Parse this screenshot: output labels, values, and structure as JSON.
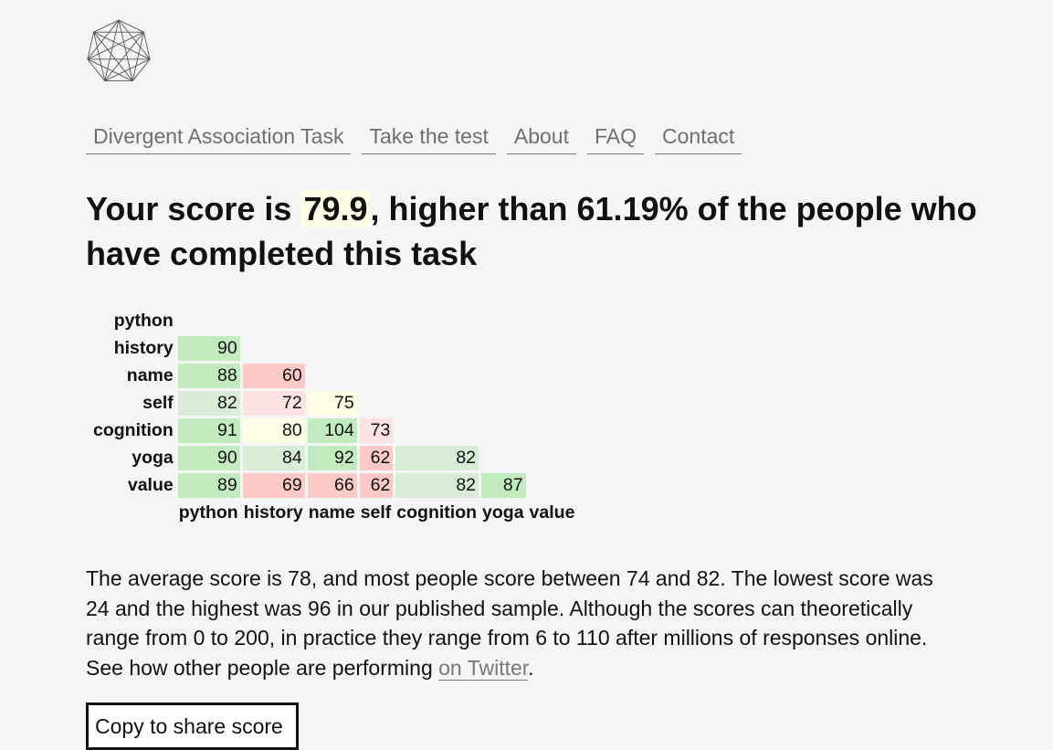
{
  "nav": {
    "home": "Divergent Association Task",
    "take_test": "Take the test",
    "about": "About",
    "faq": "FAQ",
    "contact": "Contact"
  },
  "headline": {
    "prefix": "Your score is ",
    "score": "79.9",
    "suffix": ", higher than 61.19% of the people who have completed this task"
  },
  "matrix": {
    "rows": [
      {
        "word": "python",
        "cells": []
      },
      {
        "word": "history",
        "cells": [
          {
            "v": "90",
            "c": "green"
          }
        ]
      },
      {
        "word": "name",
        "cells": [
          {
            "v": "88",
            "c": "green"
          },
          {
            "v": "60",
            "c": "red"
          }
        ]
      },
      {
        "word": "self",
        "cells": [
          {
            "v": "82",
            "c": "lgreen"
          },
          {
            "v": "72",
            "c": "lred"
          },
          {
            "v": "75",
            "c": "yellow"
          }
        ]
      },
      {
        "word": "cognition",
        "cells": [
          {
            "v": "91",
            "c": "green"
          },
          {
            "v": "80",
            "c": "yellow"
          },
          {
            "v": "104",
            "c": "green"
          },
          {
            "v": "73",
            "c": "lred"
          }
        ]
      },
      {
        "word": "yoga",
        "cells": [
          {
            "v": "90",
            "c": "green"
          },
          {
            "v": "84",
            "c": "lgreen"
          },
          {
            "v": "92",
            "c": "green"
          },
          {
            "v": "62",
            "c": "red"
          },
          {
            "v": "82",
            "c": "lgreen"
          }
        ]
      },
      {
        "word": "value",
        "cells": [
          {
            "v": "89",
            "c": "green"
          },
          {
            "v": "69",
            "c": "red"
          },
          {
            "v": "66",
            "c": "red"
          },
          {
            "v": "62",
            "c": "red"
          },
          {
            "v": "82",
            "c": "lgreen"
          },
          {
            "v": "87",
            "c": "green"
          }
        ]
      }
    ],
    "columns": [
      "python",
      "history",
      "name",
      "self",
      "cognition",
      "yoga",
      "value"
    ]
  },
  "summary": {
    "text": "The average score is 78, and most people score between 74 and 82. The lowest score was 24 and the highest was 96 in our published sample. Although the scores can theoretically range from 0 to 200, in practice they range from 6 to 110 after millions of responses online. See how other people are performing ",
    "link": "on Twitter",
    "end": "."
  },
  "copy_button": "Copy to share score"
}
